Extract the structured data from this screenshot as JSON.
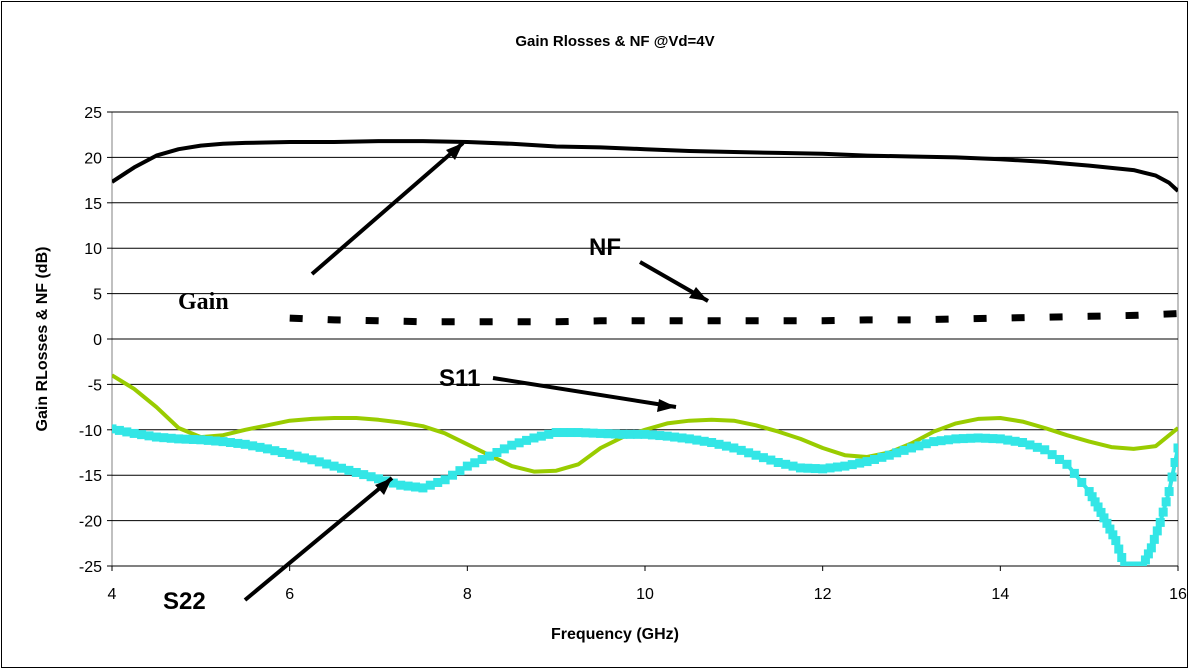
{
  "chart_data": {
    "type": "line",
    "title": "Gain Rlosses & NF @Vd=4V",
    "xlabel": "Frequency (GHz)",
    "ylabel": "Gain RLosses & NF (dB)",
    "xlim": [
      4,
      16
    ],
    "ylim": [
      -25,
      25
    ],
    "x_ticks": [
      "4",
      "6",
      "8",
      "10",
      "12",
      "14",
      "16"
    ],
    "y_ticks": [
      "25",
      "20",
      "15",
      "10",
      "5",
      "0",
      "-5",
      "-10",
      "-15",
      "-20",
      "-25"
    ],
    "grid": "horizontal",
    "legend": "none",
    "series": [
      {
        "name": "Gain",
        "style": "solid",
        "color": "#000000",
        "x": [
          4.0,
          4.25,
          4.5,
          4.75,
          5.0,
          5.25,
          5.5,
          6.0,
          6.5,
          7.0,
          7.5,
          8.0,
          8.5,
          9.0,
          9.5,
          10.0,
          10.5,
          11.0,
          11.5,
          12.0,
          12.5,
          13.0,
          13.5,
          14.0,
          14.5,
          15.0,
          15.5,
          15.75,
          15.9,
          16.0
        ],
        "y": [
          17.3,
          18.9,
          20.2,
          20.9,
          21.3,
          21.5,
          21.6,
          21.7,
          21.7,
          21.8,
          21.8,
          21.7,
          21.5,
          21.2,
          21.1,
          20.9,
          20.7,
          20.6,
          20.5,
          20.4,
          20.2,
          20.1,
          20.0,
          19.8,
          19.5,
          19.1,
          18.6,
          18.0,
          17.2,
          16.3
        ]
      },
      {
        "name": "NF",
        "style": "dotted",
        "color": "#000000",
        "x": [
          6.0,
          6.5,
          7.0,
          7.5,
          8.0,
          8.5,
          9.0,
          9.5,
          10.0,
          10.5,
          11.0,
          11.5,
          12.0,
          12.5,
          13.0,
          13.5,
          14.0,
          14.5,
          15.0,
          15.5,
          16.0
        ],
        "y": [
          2.3,
          2.1,
          2.0,
          1.9,
          1.9,
          1.9,
          1.9,
          2.0,
          2.0,
          2.0,
          2.0,
          2.0,
          2.0,
          2.1,
          2.1,
          2.2,
          2.3,
          2.4,
          2.5,
          2.6,
          2.8
        ]
      },
      {
        "name": "S11",
        "style": "solid",
        "color": "#99cc00",
        "x": [
          4.0,
          4.25,
          4.5,
          4.75,
          5.0,
          5.25,
          5.5,
          5.75,
          6.0,
          6.25,
          6.5,
          6.75,
          7.0,
          7.25,
          7.5,
          7.75,
          8.0,
          8.25,
          8.5,
          8.75,
          9.0,
          9.25,
          9.5,
          9.75,
          10.0,
          10.25,
          10.5,
          10.75,
          11.0,
          11.25,
          11.5,
          11.75,
          12.0,
          12.25,
          12.5,
          12.75,
          13.0,
          13.25,
          13.5,
          13.75,
          14.0,
          14.25,
          14.5,
          14.75,
          15.0,
          15.25,
          15.5,
          15.75,
          16.0
        ],
        "y": [
          -4.0,
          -5.5,
          -7.5,
          -9.8,
          -10.8,
          -10.6,
          -10.0,
          -9.5,
          -9.0,
          -8.8,
          -8.7,
          -8.7,
          -8.9,
          -9.2,
          -9.6,
          -10.4,
          -11.6,
          -12.8,
          -14.0,
          -14.6,
          -14.5,
          -13.8,
          -12.0,
          -10.8,
          -10.0,
          -9.3,
          -9.0,
          -8.9,
          -9.0,
          -9.5,
          -10.2,
          -11.0,
          -12.0,
          -12.8,
          -13.0,
          -12.5,
          -11.5,
          -10.2,
          -9.3,
          -8.8,
          -8.7,
          -9.1,
          -9.8,
          -10.6,
          -11.3,
          -11.9,
          -12.1,
          -11.8,
          -9.8
        ]
      },
      {
        "name": "S22",
        "style": "solid-square-markers",
        "color": "#33e6e6",
        "x": [
          4.0,
          4.25,
          4.5,
          4.75,
          5.0,
          5.25,
          5.5,
          5.75,
          6.0,
          6.25,
          6.5,
          6.75,
          7.0,
          7.25,
          7.5,
          7.75,
          8.0,
          8.25,
          8.5,
          8.75,
          9.0,
          9.25,
          9.5,
          9.75,
          10.0,
          10.25,
          10.5,
          10.75,
          11.0,
          11.25,
          11.5,
          11.75,
          12.0,
          12.25,
          12.5,
          12.75,
          13.0,
          13.25,
          13.5,
          13.75,
          14.0,
          14.25,
          14.5,
          14.75,
          15.0,
          15.1,
          15.2,
          15.3,
          15.4,
          15.5,
          15.6,
          15.7,
          15.8,
          15.9,
          16.0
        ],
        "y": [
          -9.9,
          -10.4,
          -10.8,
          -11.0,
          -11.1,
          -11.3,
          -11.6,
          -12.1,
          -12.7,
          -13.3,
          -14.0,
          -14.7,
          -15.4,
          -16.1,
          -16.4,
          -15.5,
          -14.0,
          -12.9,
          -11.7,
          -10.9,
          -10.3,
          -10.3,
          -10.4,
          -10.5,
          -10.5,
          -10.7,
          -11.0,
          -11.4,
          -12.0,
          -12.8,
          -13.6,
          -14.2,
          -14.3,
          -14.0,
          -13.5,
          -12.8,
          -12.0,
          -11.3,
          -11.0,
          -10.9,
          -11.0,
          -11.4,
          -12.2,
          -13.8,
          -16.8,
          -18.5,
          -20.3,
          -22.2,
          -25.0,
          -25.0,
          -25.0,
          -23.0,
          -20.2,
          -16.8,
          -12.0
        ]
      }
    ],
    "annotations": [
      {
        "text": "Gain",
        "points_to_series": "Gain"
      },
      {
        "text": "NF",
        "points_to_series": "NF"
      },
      {
        "text": "S11",
        "points_to_series": "S11"
      },
      {
        "text": "S22",
        "points_to_series": "S22"
      }
    ]
  }
}
